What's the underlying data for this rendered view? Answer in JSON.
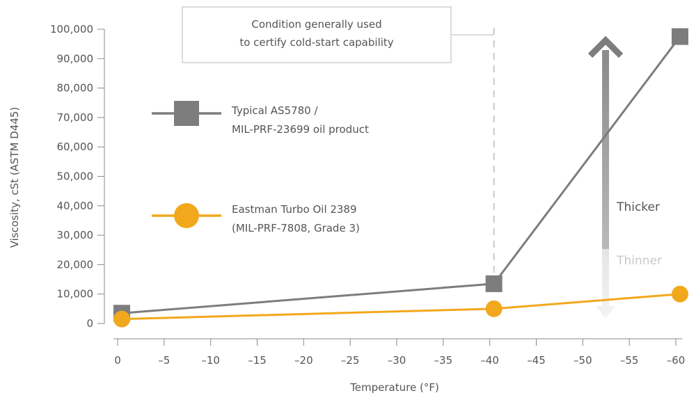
{
  "chart_data": {
    "type": "line",
    "xlabel": "Temperature (°F)",
    "ylabel": "Viscosity, cSt (ASTM D445)",
    "xlim": [
      0,
      -60
    ],
    "ylim": [
      0,
      100000
    ],
    "x_ticks": [
      "0",
      "–5",
      "–10",
      "–15",
      "–20",
      "–25",
      "–30",
      "–35",
      "–40",
      "–45",
      "–50",
      "–55",
      "–60"
    ],
    "y_ticks": [
      "0",
      "10,000",
      "20,000",
      "30,000",
      "40,000",
      "50,000",
      "60,000",
      "70,000",
      "80,000",
      "90,000",
      "100,000"
    ],
    "series": [
      {
        "name_lines": [
          "Typical AS5780 /",
          "MIL-PRF-23699 oil product"
        ],
        "color": "#7d7d7d",
        "marker": "square",
        "x": [
          0,
          -40,
          -60
        ],
        "y": [
          3500,
          13500,
          97500
        ]
      },
      {
        "name_lines": [
          "Eastman Turbo Oil 2389",
          "(MIL-PRF-7808, Grade 3)"
        ],
        "color": "#f2a81d",
        "marker": "circle",
        "x": [
          0,
          -40,
          -60
        ],
        "y": [
          1500,
          5000,
          10000
        ]
      }
    ],
    "annotation": {
      "lines": [
        "Condition generally used",
        "to certify cold-start capability"
      ],
      "x": -40
    },
    "arrow": {
      "x": -52,
      "up_label": "Thicker",
      "down_label": "Thinner"
    }
  }
}
